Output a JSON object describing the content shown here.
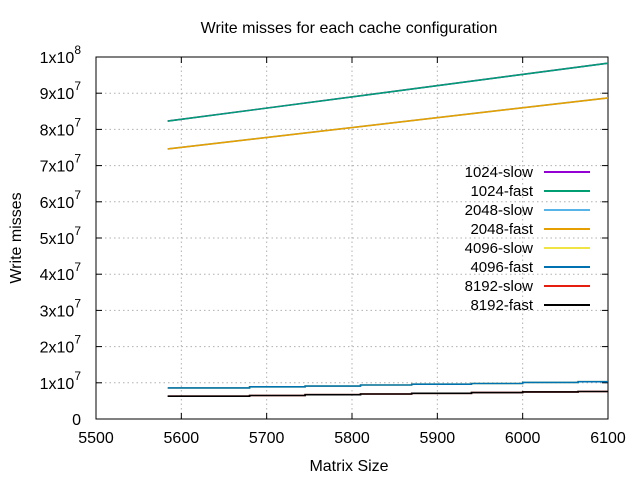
{
  "chart_data": {
    "type": "line",
    "title": "Write misses for each cache configuration",
    "xlabel": "Matrix Size",
    "ylabel": "Write misses",
    "xlim": [
      5500,
      6100
    ],
    "ylim": [
      0,
      100000000
    ],
    "xticks": [
      5500,
      5600,
      5700,
      5800,
      5900,
      6000,
      6100
    ],
    "xtick_labels": [
      "5500",
      "5600",
      "5700",
      "5800",
      "5900",
      "6000",
      "6100"
    ],
    "yticks": [
      0,
      10000000,
      20000000,
      30000000,
      40000000,
      50000000,
      60000000,
      70000000,
      80000000,
      90000000,
      100000000
    ],
    "ytick_labels": [
      {
        "base": "0",
        "exp": ""
      },
      {
        "base": "1x10",
        "exp": "7"
      },
      {
        "base": "2x10",
        "exp": "7"
      },
      {
        "base": "3x10",
        "exp": "7"
      },
      {
        "base": "4x10",
        "exp": "7"
      },
      {
        "base": "5x10",
        "exp": "7"
      },
      {
        "base": "6x10",
        "exp": "7"
      },
      {
        "base": "7x10",
        "exp": "7"
      },
      {
        "base": "8x10",
        "exp": "7"
      },
      {
        "base": "9x10",
        "exp": "7"
      },
      {
        "base": "1x10",
        "exp": "8"
      }
    ],
    "grid": true,
    "legend_position": "right",
    "series": [
      {
        "name": "1024-slow",
        "color": "#9400d3",
        "x": [
          5584,
          6100
        ],
        "y": [
          82300000,
          98300000
        ]
      },
      {
        "name": "1024-fast",
        "color": "#009e73",
        "x": [
          5584,
          6100
        ],
        "y": [
          82300000,
          98300000
        ]
      },
      {
        "name": "2048-slow",
        "color": "#56b4e9",
        "x": [
          5584,
          6100
        ],
        "y": [
          74600000,
          88700000
        ]
      },
      {
        "name": "2048-fast",
        "color": "#e69f00",
        "x": [
          5584,
          6100
        ],
        "y": [
          74600000,
          88700000
        ]
      },
      {
        "name": "4096-slow",
        "color": "#f0e442",
        "x": [
          5584,
          5680,
          5680,
          5745,
          5745,
          5810,
          5810,
          5870,
          5870,
          5940,
          5940,
          6000,
          6000,
          6065,
          6065,
          6100
        ],
        "y": [
          8600000,
          8600000,
          8900000,
          8900000,
          9100000,
          9100000,
          9400000,
          9400000,
          9600000,
          9600000,
          9800000,
          9800000,
          10100000,
          10100000,
          10300000,
          10300000
        ]
      },
      {
        "name": "4096-fast",
        "color": "#0072b2",
        "x": [
          5584,
          5680,
          5680,
          5745,
          5745,
          5810,
          5810,
          5870,
          5870,
          5940,
          5940,
          6000,
          6000,
          6065,
          6065,
          6100
        ],
        "y": [
          8600000,
          8600000,
          8900000,
          8900000,
          9100000,
          9100000,
          9400000,
          9400000,
          9600000,
          9600000,
          9800000,
          9800000,
          10100000,
          10100000,
          10300000,
          10300000
        ]
      },
      {
        "name": "8192-slow",
        "color": "#e51e10",
        "x": [
          5584,
          5680,
          5680,
          5745,
          5745,
          5810,
          5810,
          5870,
          5870,
          5940,
          5940,
          6000,
          6000,
          6065,
          6065,
          6100
        ],
        "y": [
          6300000,
          6300000,
          6500000,
          6500000,
          6700000,
          6700000,
          6900000,
          6900000,
          7100000,
          7100000,
          7300000,
          7300000,
          7500000,
          7500000,
          7600000,
          7600000
        ]
      },
      {
        "name": "8192-fast",
        "color": "#000000",
        "x": [
          5584,
          5680,
          5680,
          5745,
          5745,
          5810,
          5810,
          5870,
          5870,
          5940,
          5940,
          6000,
          6000,
          6065,
          6065,
          6100
        ],
        "y": [
          6300000,
          6300000,
          6500000,
          6500000,
          6700000,
          6700000,
          6900000,
          6900000,
          7100000,
          7100000,
          7300000,
          7300000,
          7500000,
          7500000,
          7600000,
          7600000
        ]
      }
    ]
  }
}
